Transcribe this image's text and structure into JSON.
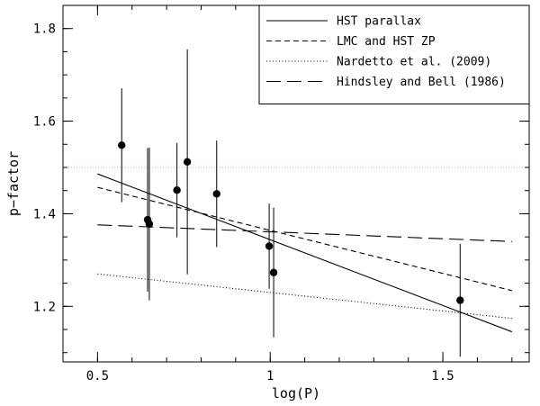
{
  "chart_data": {
    "type": "scatter",
    "xlabel": "log(P)",
    "ylabel": "p−factor",
    "xlim": [
      0.4,
      1.75
    ],
    "ylim": [
      1.08,
      1.85
    ],
    "x_ticks_labeled": [
      0.5,
      1,
      1.5
    ],
    "x_tick_labels": [
      "0.5",
      "1",
      "1.5"
    ],
    "x_minor_step": 0.1,
    "y_ticks_labeled": [
      1.2,
      1.4,
      1.6,
      1.8
    ],
    "y_tick_labels": [
      "1.2",
      "1.4",
      "1.6",
      "1.8"
    ],
    "y_minor_step": 0.05,
    "reference_line": {
      "y": 1.5,
      "style": "dotted",
      "color": "#e8a0a0"
    },
    "points": [
      {
        "x": 0.57,
        "y": 1.548,
        "err": 0.123
      },
      {
        "x": 0.645,
        "y": 1.387,
        "err": 0.155
      },
      {
        "x": 0.65,
        "y": 1.378,
        "err": 0.165
      },
      {
        "x": 0.73,
        "y": 1.451,
        "err": 0.102
      },
      {
        "x": 0.76,
        "y": 1.512,
        "err": 0.243
      },
      {
        "x": 0.845,
        "y": 1.443,
        "err": 0.115
      },
      {
        "x": 0.997,
        "y": 1.33,
        "err": 0.092
      },
      {
        "x": 1.01,
        "y": 1.273,
        "err": 0.14
      },
      {
        "x": 1.55,
        "y": 1.213,
        "err": 0.122
      }
    ],
    "series": [
      {
        "name": "HST parallax",
        "style": "solid",
        "x": [
          0.5,
          1.7
        ],
        "y": [
          1.486,
          1.145
        ]
      },
      {
        "name": "LMC and HST ZP",
        "style": "dashed",
        "x": [
          0.5,
          1.7
        ],
        "y": [
          1.457,
          1.234
        ]
      },
      {
        "name": "Nardetto et al. (2009)",
        "style": "dotted",
        "x": [
          0.5,
          1.7
        ],
        "y": [
          1.27,
          1.174
        ]
      },
      {
        "name": "Hindsley and Bell (1986)",
        "style": "longdash",
        "x": [
          0.5,
          1.7
        ],
        "y": [
          1.376,
          1.34
        ]
      }
    ],
    "legend": {
      "position": "top-right"
    }
  }
}
